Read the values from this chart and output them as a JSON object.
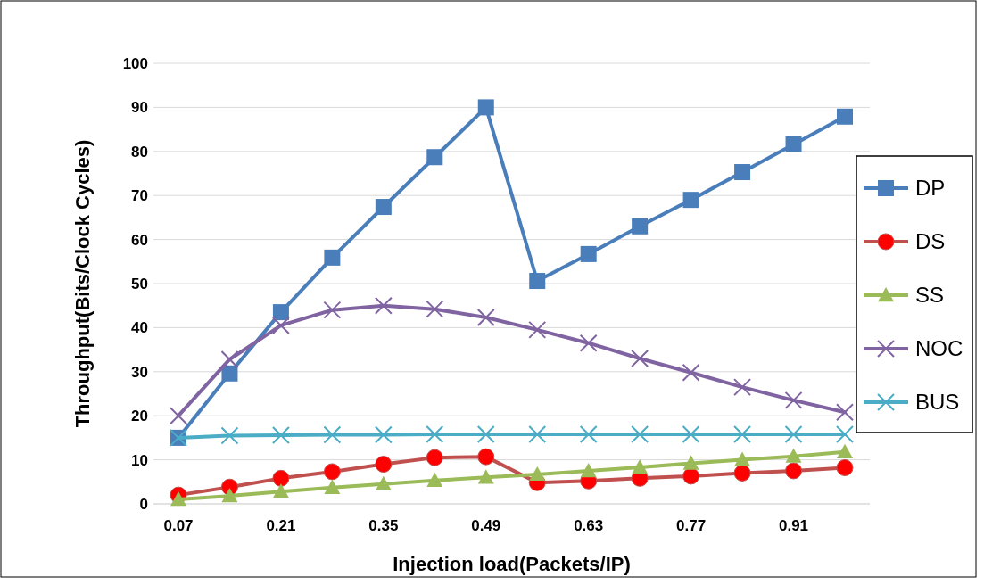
{
  "chart_data": {
    "type": "line",
    "xlabel": "Injection load(Packets/IP)",
    "ylabel": "Throughput(Bits/Clock Cycles)",
    "categories": [
      "0.07",
      null,
      "0.21",
      null,
      "0.35",
      null,
      "0.49",
      null,
      "0.63",
      null,
      "0.77",
      null,
      "0.91",
      null
    ],
    "series": [
      {
        "name": "DP",
        "color": "#4a7ebb",
        "marker": "square",
        "values": [
          15,
          29.6,
          43.5,
          55.9,
          67.4,
          78.7,
          90,
          50.6,
          56.7,
          63,
          69,
          75.3,
          81.6,
          87.9
        ]
      },
      {
        "name": "DS",
        "color": "#c0504d",
        "marker": "circle",
        "values": [
          2,
          3.8,
          5.8,
          7.3,
          9,
          10.5,
          10.7,
          4.8,
          5.2,
          5.8,
          6.3,
          7,
          7.5,
          8.2
        ]
      },
      {
        "name": "SS",
        "color": "#9bbb59",
        "marker": "triangle",
        "values": [
          1,
          1.8,
          2.8,
          3.7,
          4.5,
          5.3,
          6,
          6.7,
          7.5,
          8.3,
          9.2,
          10,
          10.8,
          11.8
        ]
      },
      {
        "name": "NOC",
        "color": "#8064a2",
        "marker": "cross",
        "values": [
          20,
          32.8,
          40.5,
          44,
          45,
          44.2,
          42.3,
          39.5,
          36.5,
          33,
          29.8,
          26.5,
          23.5,
          20.8
        ]
      },
      {
        "name": "BUS",
        "color": "#4bacc6",
        "marker": "cross",
        "values": [
          15,
          15.5,
          15.6,
          15.7,
          15.7,
          15.8,
          15.8,
          15.8,
          15.8,
          15.8,
          15.8,
          15.8,
          15.8,
          15.8
        ]
      }
    ],
    "ylim": [
      0,
      100
    ],
    "yticks": [
      0,
      10,
      20,
      30,
      40,
      50,
      60,
      70,
      80,
      90,
      100
    ],
    "grid": "y",
    "legend": "right"
  }
}
